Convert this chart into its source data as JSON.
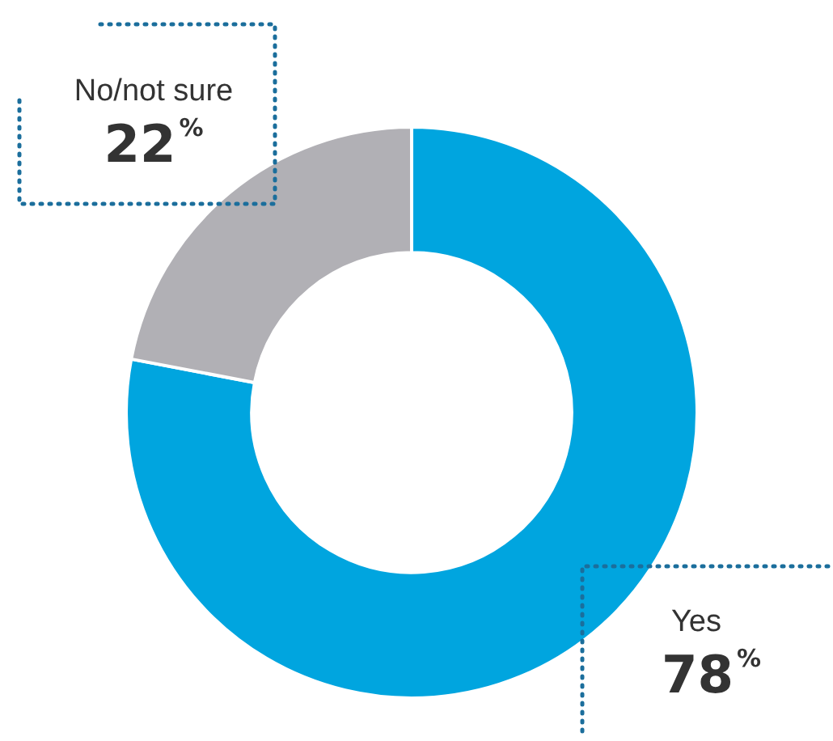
{
  "chart_data": {
    "type": "donut",
    "categories": [
      "Yes",
      "No/not sure"
    ],
    "values": [
      78,
      22
    ],
    "colors": [
      "#00a5df",
      "#b1b0b5"
    ],
    "value_labels": [
      "78$^{%}$",
      "22$^{%}$"
    ],
    "legend": false
  }
}
